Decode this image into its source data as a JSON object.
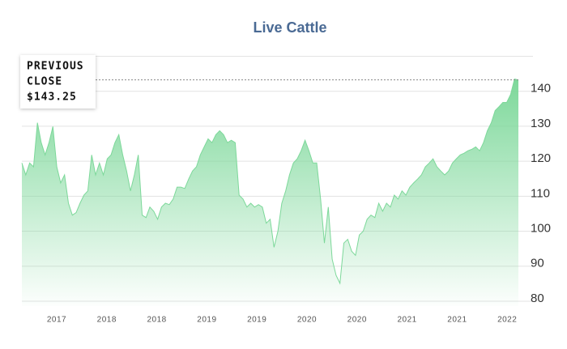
{
  "chart_data": {
    "type": "area",
    "title": "Live Cattle",
    "x_tick_labels": [
      "2017",
      "2018",
      "2018",
      "2019",
      "2019",
      "2020",
      "2020",
      "2021",
      "2021",
      "2022"
    ],
    "values": [
      119.5,
      116.1,
      119.5,
      118.4,
      131.0,
      125.3,
      121.8,
      125.3,
      129.9,
      118.4,
      113.8,
      116.1,
      108.0,
      104.6,
      105.3,
      108.0,
      110.3,
      111.5,
      121.8,
      116.1,
      119.5,
      116.1,
      120.7,
      121.8,
      125.3,
      127.6,
      121.8,
      117.2,
      111.5,
      116.1,
      121.8,
      104.6,
      103.9,
      106.9,
      105.7,
      103.4,
      106.9,
      108.0,
      107.6,
      109.2,
      112.6,
      112.6,
      112.2,
      114.9,
      117.2,
      118.4,
      121.8,
      124.1,
      126.4,
      125.3,
      127.6,
      128.7,
      127.6,
      125.3,
      126.0,
      125.3,
      110.3,
      109.2,
      106.9,
      108.0,
      106.9,
      107.6,
      106.9,
      102.3,
      103.4,
      95.4,
      100.0,
      108.0,
      111.5,
      116.1,
      119.5,
      120.7,
      123.0,
      126.0,
      123.0,
      119.5,
      119.5,
      109.2,
      96.6,
      106.9,
      92.0,
      87.4,
      85.1,
      96.6,
      97.7,
      94.3,
      93.1,
      98.9,
      100.0,
      103.4,
      104.6,
      103.9,
      108.0,
      105.7,
      108.0,
      106.9,
      110.3,
      109.2,
      111.5,
      110.3,
      112.6,
      113.8,
      114.9,
      116.1,
      118.4,
      119.5,
      120.7,
      118.4,
      117.2,
      116.1,
      117.2,
      119.5,
      120.7,
      121.8,
      122.3,
      123.0,
      123.4,
      124.1,
      123.0,
      125.3,
      128.7,
      131.0,
      134.5,
      135.6,
      136.8,
      136.8,
      139.1,
      143.5,
      143.25
    ],
    "color": "#7dd89a",
    "ylim": [
      78.6,
      150
    ],
    "yticks": [
      80,
      90,
      100,
      110,
      120,
      130,
      140
    ],
    "grid": true,
    "annotation": {
      "label_lines": [
        "PREVIOUS",
        "CLOSE"
      ],
      "value": 143.25,
      "value_label": "$143.25"
    }
  }
}
